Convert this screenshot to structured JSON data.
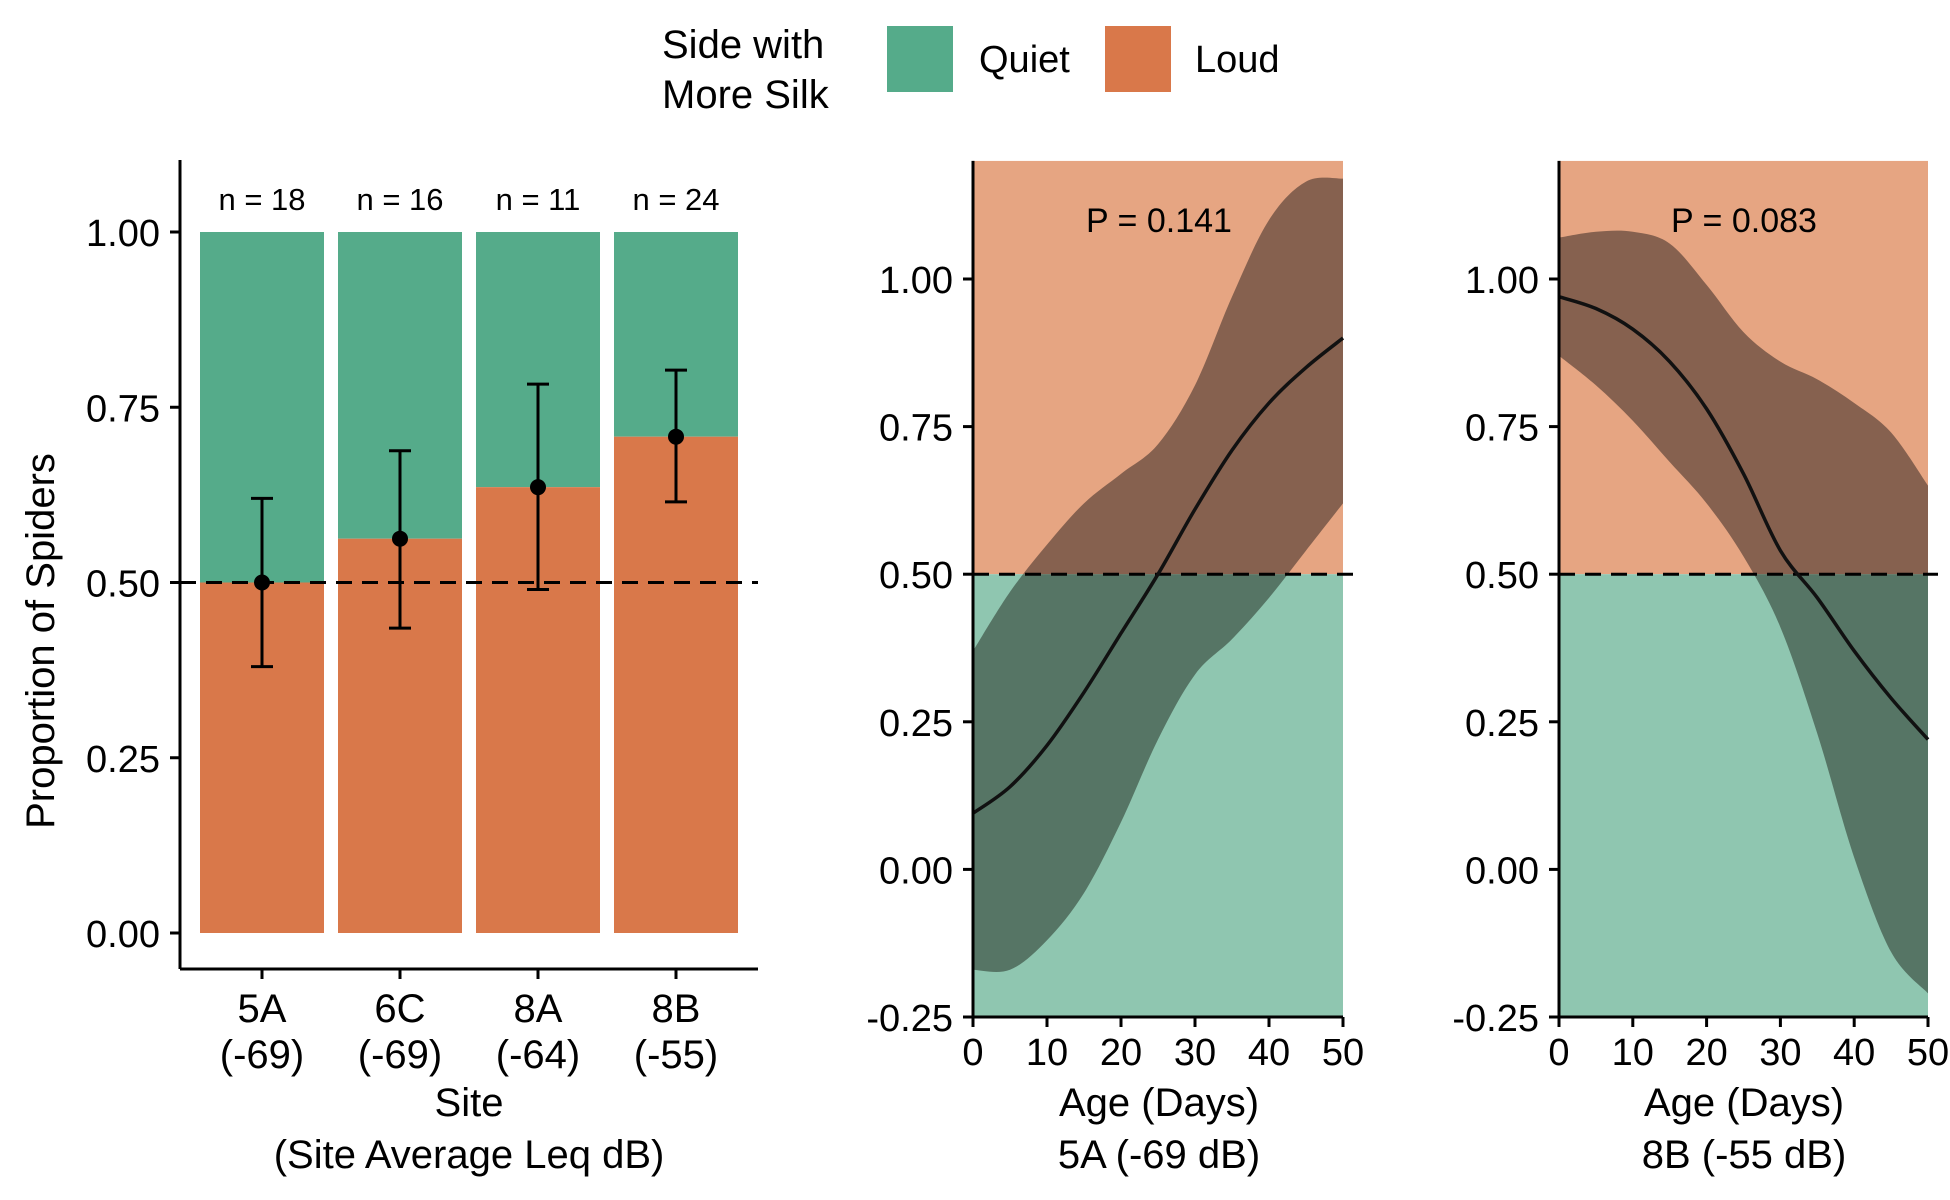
{
  "colors": {
    "quiet": "#55AB8A",
    "loud": "#D9784A",
    "quiet_light": "#8FC6B0",
    "loud_light": "#E6A582",
    "ribbon": "#86614F",
    "ribbon_dark": "#567565"
  },
  "legend": {
    "title_line1": "Side with",
    "title_line2": "More Silk",
    "items": [
      "Quiet",
      "Loud"
    ]
  },
  "chart_data": [
    {
      "type": "bar",
      "stacked": true,
      "categories": [
        "5A",
        "6C",
        "8A",
        "8B"
      ],
      "category_sublabels": [
        "(-69)",
        "(-69)",
        "(-64)",
        "(-55)"
      ],
      "series": [
        {
          "name": "Loud",
          "values": [
            0.5,
            0.5625,
            0.636,
            0.708
          ]
        },
        {
          "name": "Quiet",
          "values": [
            0.5,
            0.4375,
            0.364,
            0.292
          ]
        }
      ],
      "points": [
        0.5,
        0.5625,
        0.636,
        0.708
      ],
      "error_low": [
        0.38,
        0.435,
        0.49,
        0.615
      ],
      "error_high": [
        0.62,
        0.688,
        0.783,
        0.803
      ],
      "n_labels": [
        "n =  18",
        "n =  16",
        "n =  11",
        "n =  24"
      ],
      "reference_line": 0.5,
      "ylim": [
        0,
        1.1
      ],
      "yticks": [
        "0.00",
        "0.25",
        "0.50",
        "0.75",
        "1.00"
      ],
      "ylabel": "Proportion of Spiders",
      "xlabel_line1": "Site",
      "xlabel_line2": "(Site Average Leq dB)"
    },
    {
      "type": "line",
      "xlim": [
        0,
        50
      ],
      "ylim": [
        -0.25,
        1.2
      ],
      "xticks": [
        "0",
        "10",
        "20",
        "30",
        "40",
        "50"
      ],
      "yticks": [
        "-0.25",
        "0.00",
        "0.25",
        "0.50",
        "0.75",
        "1.00"
      ],
      "x": [
        0,
        5,
        10,
        15,
        20,
        25,
        30,
        35,
        40,
        45,
        50
      ],
      "fit": [
        0.095,
        0.14,
        0.21,
        0.3,
        0.4,
        0.5,
        0.61,
        0.71,
        0.79,
        0.85,
        0.9
      ],
      "lower": [
        -0.17,
        -0.17,
        -0.12,
        -0.04,
        0.08,
        0.22,
        0.33,
        0.39,
        0.46,
        0.54,
        0.62
      ],
      "upper": [
        0.37,
        0.47,
        0.55,
        0.62,
        0.67,
        0.72,
        0.82,
        0.97,
        1.1,
        1.165,
        1.17
      ],
      "reference_line": 0.5,
      "annotation": "P = 0.141",
      "xlabel_line1": "Age (Days)",
      "xlabel_line2": "5A (-69 dB)"
    },
    {
      "type": "line",
      "xlim": [
        0,
        50
      ],
      "ylim": [
        -0.25,
        1.2
      ],
      "xticks": [
        "0",
        "10",
        "20",
        "30",
        "40",
        "50"
      ],
      "yticks": [
        "-0.25",
        "0.00",
        "0.25",
        "0.50",
        "0.75",
        "1.00"
      ],
      "x": [
        0,
        5,
        10,
        15,
        20,
        25,
        30,
        35,
        40,
        45,
        50
      ],
      "fit": [
        0.97,
        0.95,
        0.915,
        0.86,
        0.78,
        0.67,
        0.54,
        0.46,
        0.37,
        0.29,
        0.22
      ],
      "lower": [
        0.87,
        0.82,
        0.76,
        0.69,
        0.62,
        0.53,
        0.41,
        0.23,
        0.02,
        -0.14,
        -0.21
      ],
      "upper": [
        1.07,
        1.08,
        1.08,
        1.06,
        0.99,
        0.91,
        0.86,
        0.83,
        0.79,
        0.74,
        0.65
      ],
      "reference_line": 0.5,
      "annotation": "P = 0.083",
      "xlabel_line1": "Age (Days)",
      "xlabel_line2": "8B (-55 dB)"
    }
  ]
}
